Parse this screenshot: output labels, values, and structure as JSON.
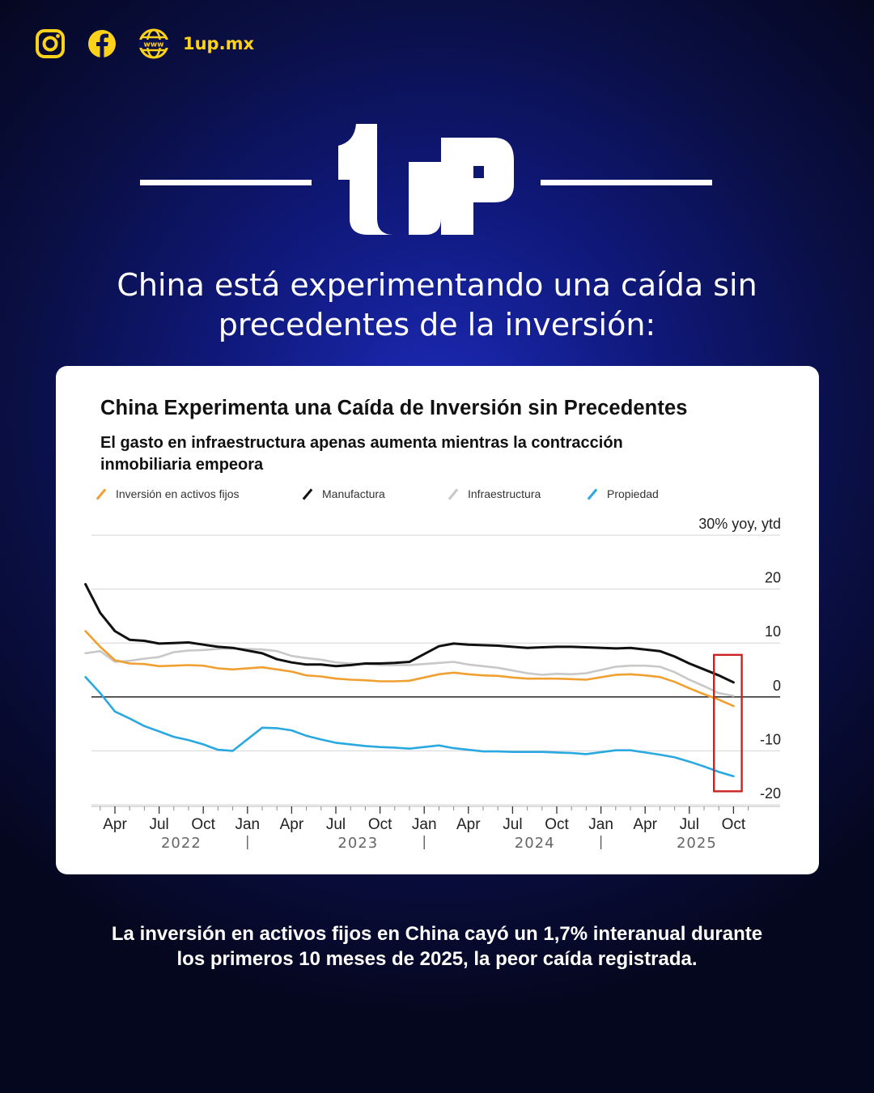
{
  "header": {
    "site": "1up.mx",
    "icons": [
      "instagram-icon",
      "facebook-icon",
      "www-globe-icon"
    ],
    "accent": "#ffd21a"
  },
  "brand": {
    "logo_text": "1UP"
  },
  "headline": "China está experimentando una caída sin precedentes de la inversión:",
  "card": {
    "title": "China Experimenta una Caída de Inversión sin Precedentes",
    "subtitle": "El gasto en infraestructura apenas aumenta mientras la contracción inmobiliaria empeora"
  },
  "footer": "La inversión en activos fijos en China cayó un 1,7% interanual durante los primeros 10 meses de 2025, la peor caída registrada.",
  "chart_data": {
    "type": "line",
    "title": "China Experimenta una Caída de Inversión sin Precedentes",
    "subtitle": "El gasto en infraestructura apenas aumenta mientras la contracción inmobiliaria empeora",
    "ylabel": "30% yoy, ytd",
    "ylim": [
      -20,
      30
    ],
    "yticks": [
      30,
      20,
      10,
      0,
      -10,
      -20
    ],
    "ytick_labels": [
      "30% yoy, ytd",
      "20",
      "10",
      "0",
      "-10",
      "-20"
    ],
    "x_tick_labels": [
      "Apr",
      "Jul",
      "Oct",
      "Jan",
      "Apr",
      "Jul",
      "Oct",
      "Jan",
      "Apr",
      "Jul",
      "Oct",
      "Jan",
      "Apr",
      "Jul",
      "Oct"
    ],
    "x_year_labels": [
      "2022",
      "2023",
      "2024",
      "2025"
    ],
    "x": [
      "2022-02",
      "2022-03",
      "2022-04",
      "2022-05",
      "2022-06",
      "2022-07",
      "2022-08",
      "2022-09",
      "2022-10",
      "2022-11",
      "2022-12",
      "2023-02",
      "2023-03",
      "2023-04",
      "2023-05",
      "2023-06",
      "2023-07",
      "2023-08",
      "2023-09",
      "2023-10",
      "2023-11",
      "2023-12",
      "2024-02",
      "2024-03",
      "2024-04",
      "2024-05",
      "2024-06",
      "2024-07",
      "2024-08",
      "2024-09",
      "2024-10",
      "2024-11",
      "2024-12",
      "2025-02",
      "2025-03",
      "2025-04",
      "2025-05",
      "2025-06",
      "2025-07",
      "2025-08",
      "2025-09",
      "2025-10"
    ],
    "series": [
      {
        "name": "Inversión en activos fijos",
        "color": "#f0a030",
        "values": [
          12.2,
          9.3,
          6.8,
          6.2,
          6.1,
          5.7,
          5.8,
          5.9,
          5.8,
          5.3,
          5.1,
          5.5,
          5.1,
          4.7,
          4.0,
          3.8,
          3.4,
          3.2,
          3.1,
          2.9,
          2.9,
          3.0,
          4.2,
          4.5,
          4.2,
          4.0,
          3.9,
          3.6,
          3.4,
          3.4,
          3.4,
          3.3,
          3.2,
          4.1,
          4.2,
          4.0,
          3.7,
          2.8,
          1.6,
          0.5,
          -0.5,
          -1.7
        ]
      },
      {
        "name": "Manufactura",
        "color": "#111111",
        "values": [
          20.9,
          15.6,
          12.2,
          10.6,
          10.4,
          9.9,
          10.0,
          10.1,
          9.7,
          9.3,
          9.1,
          8.1,
          7.0,
          6.4,
          6.0,
          6.0,
          5.7,
          5.9,
          6.2,
          6.2,
          6.3,
          6.5,
          9.4,
          9.9,
          9.7,
          9.6,
          9.5,
          9.3,
          9.1,
          9.2,
          9.3,
          9.3,
          9.2,
          9.0,
          9.1,
          8.8,
          8.5,
          7.5,
          6.2,
          5.1,
          4.0,
          2.7
        ]
      },
      {
        "name": "Infraestructura",
        "color": "#c8c8c8",
        "values": [
          8.1,
          8.5,
          6.5,
          6.7,
          7.1,
          7.4,
          8.3,
          8.6,
          8.7,
          8.9,
          9.0,
          8.8,
          8.5,
          7.6,
          7.2,
          6.9,
          6.4,
          6.2,
          6.1,
          5.9,
          5.9,
          5.9,
          6.3,
          6.5,
          6.0,
          5.7,
          5.4,
          4.9,
          4.4,
          4.1,
          4.3,
          4.2,
          4.4,
          5.6,
          5.8,
          5.8,
          5.6,
          4.6,
          3.2,
          2.0,
          0.7,
          0.2
        ]
      },
      {
        "name": "Propiedad",
        "color": "#2aa8e0",
        "values": [
          3.7,
          0.7,
          -2.7,
          -4.0,
          -5.4,
          -6.4,
          -7.4,
          -8.0,
          -8.8,
          -9.8,
          -10.0,
          -5.7,
          -5.8,
          -6.2,
          -7.2,
          -7.9,
          -8.5,
          -8.8,
          -9.1,
          -9.3,
          -9.4,
          -9.6,
          -9.0,
          -9.5,
          -9.8,
          -10.1,
          -10.1,
          -10.2,
          -10.2,
          -10.2,
          -10.3,
          -10.4,
          -10.6,
          -9.9,
          -9.9,
          -10.3,
          -10.7,
          -11.2,
          -12.0,
          -12.9,
          -13.9,
          -14.7
        ]
      }
    ],
    "highlight": {
      "color": "#cc2222",
      "x_range": [
        "2025-09",
        "2025-11"
      ],
      "y_range": [
        -17.5,
        7.8
      ]
    },
    "grid": true,
    "legend_position": "top"
  }
}
